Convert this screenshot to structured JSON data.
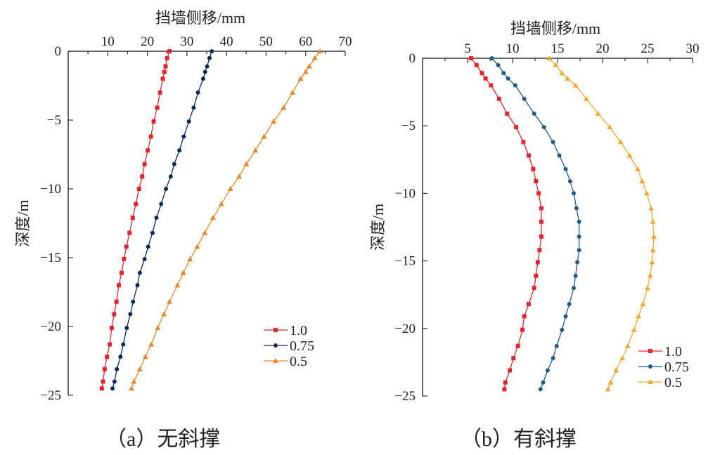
{
  "chart_data": [
    {
      "type": "line",
      "id": "a",
      "caption": "（a）无斜撑",
      "xlabel": "挡墙侧移/mm",
      "ylabel": "深度/m",
      "xlim": [
        0,
        70
      ],
      "ylim": [
        -25,
        0
      ],
      "xticks": [
        10,
        20,
        30,
        40,
        50,
        60,
        70
      ],
      "yticks": [
        0,
        -5,
        -10,
        -15,
        -20,
        -25
      ],
      "legend_position": "bottom-right",
      "y": [
        0,
        -0.5,
        -1.1,
        -1.5,
        -2,
        -3,
        -4.1,
        -5.1,
        -6.2,
        -7.2,
        -8.2,
        -9.1,
        -10,
        -11.1,
        -12.1,
        -13.2,
        -14.2,
        -15.1,
        -16.1,
        -17,
        -18.2,
        -19.1,
        -20.1,
        -21.3,
        -22.2,
        -23.1,
        -24,
        -24.5
      ],
      "series": [
        {
          "name": "1.0",
          "marker": "square",
          "color": "#e0262d",
          "x": [
            25.6,
            25.0,
            24.6,
            24.3,
            23.9,
            23.2,
            22.5,
            21.6,
            20.9,
            20.1,
            19.3,
            18.7,
            17.9,
            17.1,
            16.3,
            15.5,
            14.7,
            14.1,
            13.5,
            12.8,
            12.2,
            11.6,
            11.0,
            10.5,
            9.8,
            9.2,
            8.8,
            8.5
          ]
        },
        {
          "name": "0.75",
          "marker": "circle",
          "color": "#0d2a52",
          "x": [
            36.3,
            35.7,
            35.1,
            34.6,
            34.1,
            32.8,
            31.7,
            30.5,
            29.2,
            28.1,
            26.8,
            25.9,
            24.7,
            23.5,
            22.3,
            21.3,
            20.2,
            19.3,
            18.1,
            17.5,
            16.4,
            15.7,
            14.8,
            13.9,
            13.2,
            12.3,
            11.7,
            11.2
          ]
        },
        {
          "name": "0.5",
          "marker": "triangle",
          "color": "#e8872a",
          "x": [
            63.6,
            62.3,
            60.9,
            60.0,
            58.7,
            56.7,
            54.4,
            51.9,
            49.5,
            47.3,
            45.0,
            43.2,
            41.0,
            38.7,
            36.6,
            34.5,
            32.6,
            30.8,
            29.1,
            27.6,
            25.6,
            24.2,
            22.6,
            21.0,
            19.5,
            18.1,
            16.6,
            16.0
          ]
        }
      ]
    },
    {
      "type": "line",
      "id": "b",
      "caption": "（b）有斜撑",
      "xlabel": "挡墙侧移/mm",
      "ylabel": "深度/m",
      "xlim": [
        0,
        30
      ],
      "ylim": [
        -25,
        0
      ],
      "xticks": [
        5,
        10,
        15,
        20,
        25,
        30
      ],
      "yticks": [
        0,
        -5,
        -10,
        -15,
        -20,
        -25
      ],
      "legend_position": "bottom-right",
      "y": [
        0,
        -0.5,
        -1.1,
        -1.5,
        -2,
        -3,
        -4.1,
        -5.1,
        -6.2,
        -7.2,
        -8.2,
        -9.1,
        -10,
        -11.1,
        -12.1,
        -13.2,
        -14.2,
        -15.1,
        -16.1,
        -17,
        -18.2,
        -19.1,
        -20.1,
        -21.3,
        -22.2,
        -23.1,
        -24,
        -24.5
      ],
      "series": [
        {
          "name": "1.0",
          "marker": "square",
          "color": "#e0262d",
          "x": [
            5.4,
            6.0,
            6.6,
            7.0,
            7.6,
            8.5,
            9.4,
            10.4,
            11.2,
            11.8,
            12.3,
            12.6,
            12.9,
            13.2,
            13.2,
            13.2,
            13.0,
            12.8,
            12.6,
            12.4,
            11.8,
            11.3,
            11.1,
            10.6,
            10.1,
            9.7,
            9.2,
            9.1
          ]
        },
        {
          "name": "0.75",
          "marker": "circle",
          "color": "#1f5a8a",
          "x": [
            7.7,
            8.4,
            9.0,
            9.5,
            10.3,
            11.3,
            12.4,
            13.5,
            14.5,
            15.2,
            15.9,
            16.4,
            16.8,
            17.1,
            17.4,
            17.4,
            17.4,
            17.2,
            17.0,
            16.8,
            16.3,
            15.9,
            15.5,
            14.9,
            14.5,
            13.9,
            13.4,
            13.1
          ]
        },
        {
          "name": "0.5",
          "marker": "triangle",
          "color": "#f0a830",
          "x": [
            14.1,
            14.8,
            15.5,
            16.1,
            17.0,
            18.2,
            19.5,
            20.8,
            22.0,
            23.0,
            23.9,
            24.4,
            24.9,
            25.4,
            25.6,
            25.7,
            25.6,
            25.5,
            25.3,
            25.0,
            24.5,
            24.0,
            23.5,
            22.8,
            22.2,
            21.5,
            20.9,
            20.6
          ]
        }
      ]
    }
  ]
}
